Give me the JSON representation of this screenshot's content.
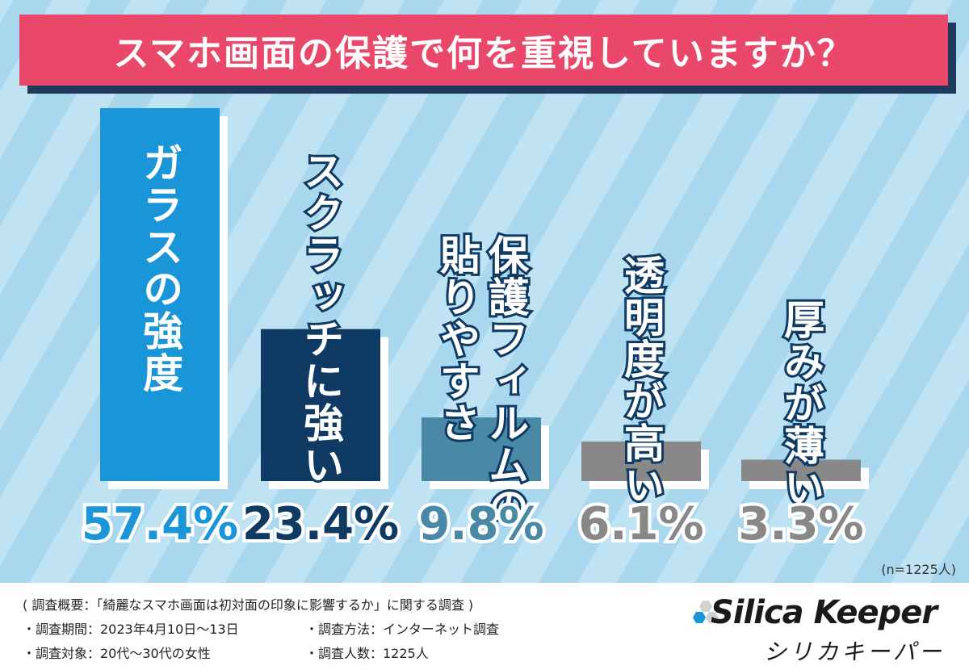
{
  "title": "スマホ画面の保護で何を重視していますか？",
  "n_label": "(n=1225人)",
  "chart_data": {
    "type": "bar",
    "categories": [
      "ガラスの強度",
      "スクラッチに強い",
      "保護フィルムの貼りやすさ",
      "透明度が高い",
      "厚みが薄い"
    ],
    "category_lines": [
      [
        "ガラスの強度"
      ],
      [
        "スクラッチに強い"
      ],
      [
        "保護フィルムの",
        "貼りやすさ"
      ],
      [
        "透明度が高い"
      ],
      [
        "厚みが薄い"
      ]
    ],
    "values": [
      57.4,
      23.4,
      9.8,
      6.1,
      3.3
    ],
    "value_labels": [
      "57.4%",
      "23.4%",
      "9.8%",
      "6.1%",
      "3.3%"
    ],
    "colors": [
      "#1a95d8",
      "#0e3a63",
      "#4a89a6",
      "#888888",
      "#888888"
    ],
    "ylim": [
      0,
      57.4
    ]
  },
  "footer": {
    "overview": "( 調査概要：「綺麗なスマホ画面は初対面の印象に影響するか」に関する調査 )",
    "period": "・調査期間：2023年4月10日～13日",
    "method": "・調査方法：インターネット調査",
    "target": "・調査対象：20代～30代の女性",
    "count": "・調査人数：1225人"
  },
  "brand": {
    "name_en": "Silica Keeper",
    "name_ja": "シリカキーパー"
  }
}
